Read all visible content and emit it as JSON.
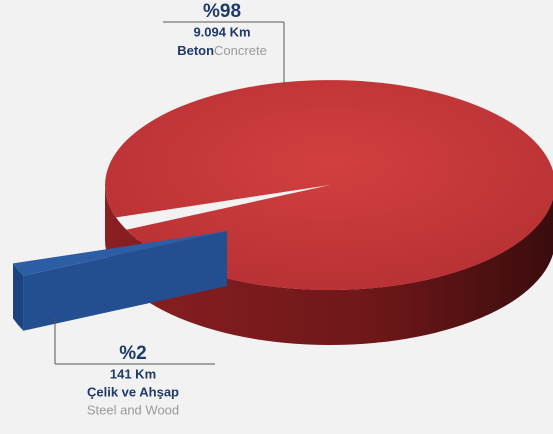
{
  "chart_data": {
    "type": "pie",
    "categories": [
      "Beton",
      "Çelik ve Ahşap"
    ],
    "categories_en": [
      "Concrete",
      "Steel and Wood"
    ],
    "values": [
      98,
      2
    ],
    "value_labels": [
      "%98",
      "%2"
    ],
    "lengths": [
      "9.094 Km",
      "141 Km"
    ],
    "colors": [
      "#c0373a",
      "#2c5ea6"
    ]
  }
}
